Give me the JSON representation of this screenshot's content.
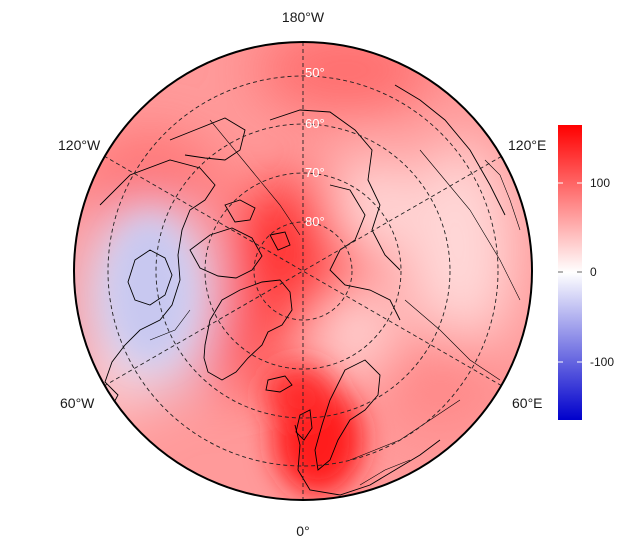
{
  "map": {
    "projection": "polar stereographic (north)",
    "longitude_labels": {
      "top": "180°W",
      "upper_left": "120°W",
      "upper_right": "120°E",
      "lower_left": "60°W",
      "lower_right": "60°E",
      "bottom": "0°"
    },
    "latitude_labels": [
      "50°",
      "60°",
      "70°",
      "80°"
    ],
    "colorbar": {
      "ticks": [
        "100",
        "0",
        "-100"
      ],
      "range": [
        -165,
        165
      ],
      "colors": {
        "high": "#ff0000",
        "mid": "#ffffff",
        "low": "#0000cc"
      }
    }
  }
}
